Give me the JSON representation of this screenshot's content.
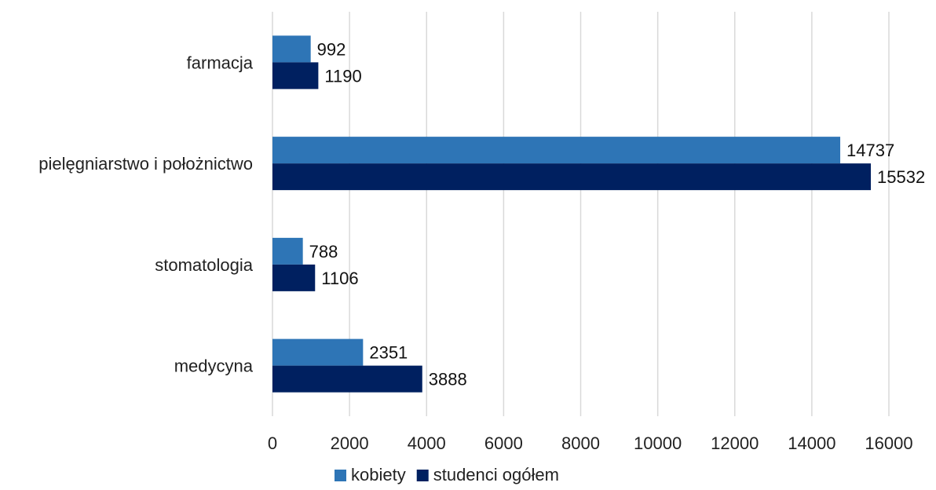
{
  "chart_data": {
    "type": "bar",
    "orientation": "horizontal",
    "categories": [
      "farmacja",
      "pielęgniarstwo i położnictwo",
      "stomatologia",
      "medycyna"
    ],
    "series": [
      {
        "name": "kobiety",
        "values": [
          992,
          14737,
          788,
          2351
        ],
        "color": "#2e75b6"
      },
      {
        "name": "studenci ogółem",
        "values": [
          1190,
          15532,
          1106,
          3888
        ],
        "color": "#002060"
      }
    ],
    "xlim": [
      0,
      16000
    ],
    "xticks": [
      "0",
      "2000",
      "4000",
      "6000",
      "8000",
      "10000",
      "12000",
      "14000",
      "16000"
    ],
    "grid": "vertical",
    "legend_position": "bottom",
    "gridline_color": "#d9d9d9"
  }
}
